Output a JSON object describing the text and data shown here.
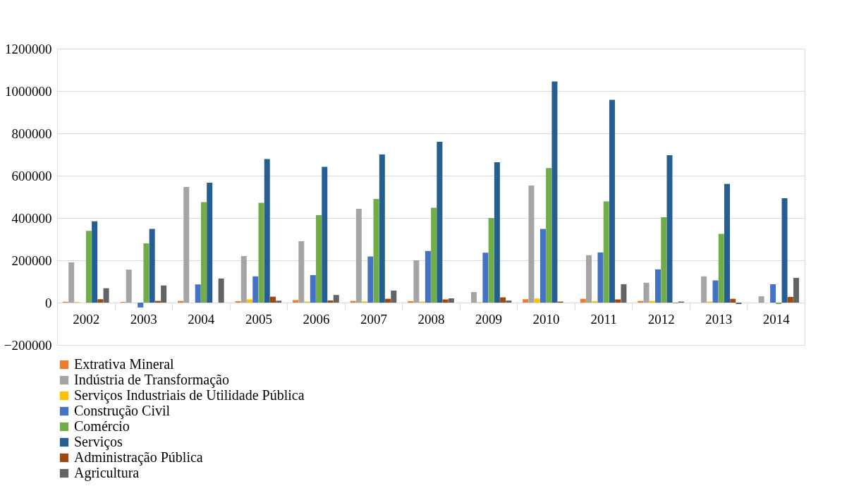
{
  "chart_data": {
    "type": "bar",
    "categories": [
      "2002",
      "2003",
      "2004",
      "2005",
      "2006",
      "2007",
      "2008",
      "2009",
      "2010",
      "2011",
      "2012",
      "2013",
      "2014"
    ],
    "series": [
      {
        "name": "Extrativa Mineral",
        "color": "#ed7d31",
        "values": [
          4000,
          3000,
          8000,
          7000,
          12000,
          8000,
          7000,
          null,
          16000,
          18000,
          8000,
          null,
          0
        ]
      },
      {
        "name": "Indústria de Transformação",
        "color": "#a5a5a5",
        "values": [
          190000,
          156000,
          547000,
          220000,
          290000,
          443000,
          200000,
          50000,
          553000,
          224000,
          94000,
          124000,
          30000
        ]
      },
      {
        "name": "Serviços Industriais de  Utilidade Pública",
        "color": "#ffc000",
        "values": [
          3000,
          null,
          null,
          15000,
          5000,
          6000,
          5000,
          2000,
          19000,
          7000,
          8000,
          5000,
          null
        ]
      },
      {
        "name": "Construção Civil",
        "color": "#4472c4",
        "values": [
          0,
          -23000,
          86000,
          124000,
          130000,
          218000,
          244000,
          236000,
          348000,
          237000,
          157000,
          105000,
          87000
        ]
      },
      {
        "name": "Comércio",
        "color": "#70ad47",
        "values": [
          339000,
          280000,
          475000,
          472000,
          413000,
          490000,
          448000,
          400000,
          636000,
          478000,
          403000,
          325000,
          -7000
        ]
      },
      {
        "name": "Serviços",
        "color": "#255e91",
        "values": [
          384000,
          348000,
          567000,
          678000,
          642000,
          700000,
          760000,
          663000,
          1045000,
          958000,
          697000,
          561000,
          493000
        ]
      },
      {
        "name": "Administração Pública",
        "color": "#9e480e",
        "values": [
          16000,
          8000,
          0,
          28000,
          10000,
          18000,
          15000,
          25000,
          5000,
          15000,
          -2000,
          18000,
          27000
        ]
      },
      {
        "name": "Agricultura",
        "color": "#636363",
        "values": [
          68000,
          81000,
          114000,
          9000,
          36000,
          57000,
          20000,
          10000,
          0,
          87000,
          5000,
          -7000,
          117000
        ]
      }
    ],
    "ylim": [
      -200000,
      1200000
    ],
    "yticks": [
      -200000,
      0,
      200000,
      400000,
      600000,
      800000,
      1000000,
      1200000
    ],
    "grid": "y",
    "legend": "bottom"
  }
}
